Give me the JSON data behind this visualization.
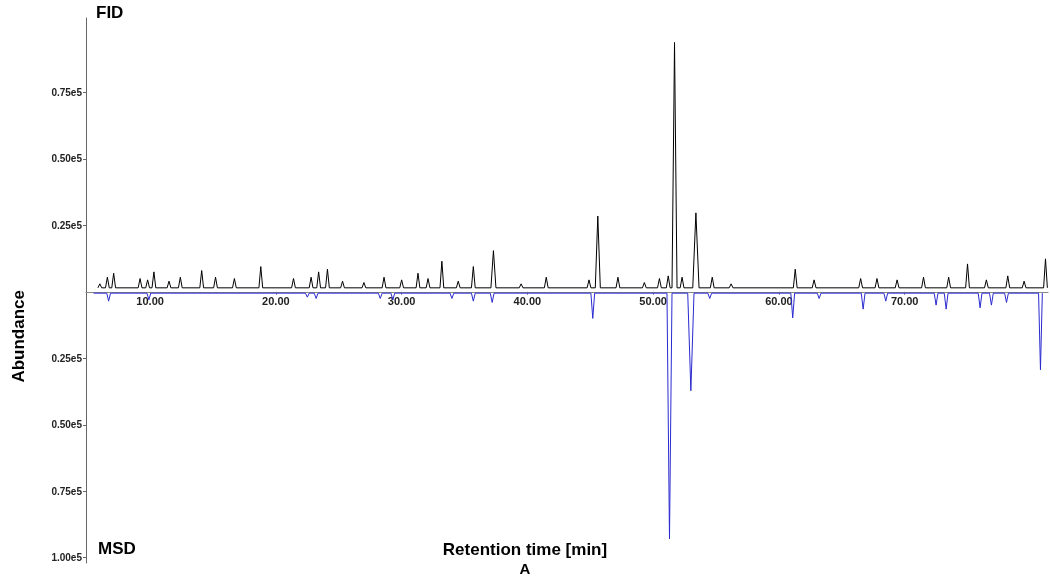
{
  "chart_data": {
    "type": "line",
    "ylabel": "Abundance",
    "xlabel": "Retention time [min]",
    "annotations": [
      "FID",
      "MSD",
      "A"
    ],
    "xlim": [
      4.9,
      81.4
    ],
    "xticks": [
      {
        "value": 10,
        "label": "10.00"
      },
      {
        "value": 20,
        "label": "20.00"
      },
      {
        "value": 30,
        "label": "30.00"
      },
      {
        "value": 40,
        "label": "40.00"
      },
      {
        "value": 50,
        "label": "50.00"
      },
      {
        "value": 60,
        "label": "60.00"
      },
      {
        "value": 70,
        "label": "70.00"
      }
    ],
    "ylim": [
      -102000,
      103000
    ],
    "yticks": [
      {
        "value": 75000,
        "label": "0.75e5"
      },
      {
        "value": 50000,
        "label": "0.50e5"
      },
      {
        "value": 25000,
        "label": "0.25e5"
      },
      {
        "value": -25000,
        "label": "0.25e5"
      },
      {
        "value": -50000,
        "label": "0.50e5"
      },
      {
        "value": -75000,
        "label": "0.75e5"
      },
      {
        "value": -100000,
        "label": "1.00e5"
      }
    ],
    "grid": false,
    "marker": "none",
    "line_style": "solid",
    "series": [
      {
        "color": "#2a2ad0",
        "x": [
          5.5,
          6.55,
          6.7,
          6.85,
          9.75,
          9.9,
          10.05,
          22.35,
          22.5,
          22.65,
          23.05,
          23.2,
          23.35,
          28.15,
          28.3,
          28.45,
          29.15,
          29.3,
          29.45,
          33.85,
          34.0,
          34.15,
          35.55,
          35.7,
          35.85,
          37.05,
          37.2,
          37.35,
          45.05,
          45.2,
          45.35,
          51.1,
          51.3,
          51.5,
          52.75,
          53.0,
          53.25,
          54.35,
          54.5,
          54.65,
          60.95,
          61.1,
          61.25,
          63.05,
          63.2,
          63.35,
          66.55,
          66.7,
          66.85,
          68.35,
          68.5,
          68.65,
          72.35,
          72.5,
          72.65,
          73.15,
          73.3,
          73.45,
          75.85,
          76.0,
          76.15,
          76.75,
          76.9,
          77.05,
          77.95,
          78.1,
          78.25,
          80.65,
          80.8,
          80.95
        ],
        "values": [
          -500,
          -500,
          -3500,
          -500,
          -500,
          -3000,
          -500,
          -500,
          -2000,
          -500,
          -500,
          -2500,
          -500,
          -500,
          -2500,
          -500,
          -500,
          -3000,
          -500,
          -500,
          -2500,
          -500,
          -500,
          -3500,
          -500,
          -500,
          -4000,
          -500,
          -500,
          -10000,
          -500,
          -500,
          -92900,
          -500,
          -500,
          -37200,
          -500,
          -500,
          -2500,
          -500,
          -500,
          -9800,
          -500,
          -500,
          -2500,
          -500,
          -500,
          -6500,
          -500,
          -500,
          -3500,
          -500,
          -500,
          -5000,
          -500,
          -500,
          -6500,
          -500,
          -500,
          -6000,
          -500,
          -500,
          -5000,
          -500,
          -500,
          -4000,
          -500,
          -500,
          -29300,
          -500
        ]
      },
      {
        "color": "#000000",
        "x": [
          5.85,
          6.0,
          6.15,
          6.45,
          6.6,
          6.75,
          6.95,
          7.1,
          7.25,
          9.05,
          9.2,
          9.35,
          9.65,
          9.8,
          9.95,
          10.15,
          10.3,
          10.45,
          11.35,
          11.5,
          11.65,
          12.25,
          12.4,
          12.55,
          13.95,
          14.1,
          14.25,
          15.05,
          15.2,
          15.35,
          16.55,
          16.7,
          16.85,
          18.65,
          18.8,
          18.95,
          21.25,
          21.4,
          21.55,
          22.65,
          22.8,
          22.95,
          23.25,
          23.4,
          23.55,
          23.95,
          24.1,
          24.25,
          25.15,
          25.3,
          25.45,
          26.85,
          27.0,
          27.15,
          28.45,
          28.6,
          28.75,
          29.85,
          30.0,
          30.15,
          31.15,
          31.3,
          31.45,
          31.95,
          32.1,
          32.25,
          33.05,
          33.2,
          33.35,
          34.35,
          34.5,
          34.65,
          35.55,
          35.7,
          35.85,
          37.1,
          37.3,
          37.5,
          39.35,
          39.5,
          39.65,
          41.35,
          41.5,
          41.65,
          44.75,
          44.9,
          45.05,
          45.4,
          45.6,
          45.8,
          47.05,
          47.2,
          47.35,
          49.15,
          49.3,
          49.45,
          50.35,
          50.5,
          50.65,
          51.05,
          51.2,
          51.35,
          51.5,
          51.7,
          51.9,
          52.15,
          52.3,
          52.45,
          53.15,
          53.4,
          53.65,
          54.55,
          54.7,
          54.85,
          56.05,
          56.2,
          56.35,
          61.15,
          61.3,
          61.45,
          62.65,
          62.8,
          62.95,
          66.35,
          66.5,
          66.65,
          67.65,
          67.8,
          67.95,
          69.25,
          69.4,
          69.55,
          71.35,
          71.5,
          71.65,
          73.35,
          73.5,
          73.65,
          74.85,
          75.0,
          75.15,
          76.35,
          76.5,
          76.65,
          78.05,
          78.2,
          78.35,
          79.35,
          79.5,
          79.65,
          81.05,
          81.2,
          81.35
        ],
        "values": [
          1500,
          3000,
          1500,
          1500,
          5500,
          1500,
          1500,
          7000,
          1500,
          1500,
          5000,
          1500,
          1500,
          4500,
          1500,
          1500,
          7500,
          1500,
          1500,
          4000,
          1500,
          1500,
          5500,
          1500,
          1500,
          8000,
          1500,
          1500,
          5500,
          1500,
          1500,
          5000,
          1500,
          1500,
          9500,
          1500,
          1500,
          5000,
          1500,
          1500,
          5500,
          1500,
          1500,
          7500,
          1500,
          1500,
          8500,
          1500,
          1500,
          4000,
          1500,
          1500,
          3500,
          1500,
          1500,
          5500,
          1500,
          1500,
          4500,
          1500,
          1500,
          7000,
          1500,
          1500,
          5000,
          1500,
          1500,
          11500,
          1500,
          1500,
          4000,
          1500,
          1500,
          9500,
          1500,
          1500,
          15500,
          1500,
          1500,
          3000,
          1500,
          1500,
          5500,
          1500,
          1500,
          4500,
          1500,
          1500,
          28500,
          1500,
          1500,
          5500,
          1500,
          1500,
          3500,
          1500,
          1500,
          5000,
          1500,
          1500,
          6000,
          1500,
          1500,
          93800,
          1500,
          1500,
          5500,
          1500,
          1500,
          29700,
          1500,
          1500,
          5500,
          1500,
          1500,
          3000,
          1500,
          1500,
          8500,
          1500,
          1500,
          4500,
          1500,
          1500,
          5000,
          1500,
          1500,
          5000,
          1500,
          1500,
          4500,
          1500,
          1500,
          5500,
          1500,
          1500,
          5500,
          1500,
          1500,
          10500,
          1500,
          1500,
          4500,
          1500,
          1500,
          6000,
          1500,
          1500,
          4000,
          1500,
          1500,
          12400,
          1500
        ]
      }
    ]
  }
}
